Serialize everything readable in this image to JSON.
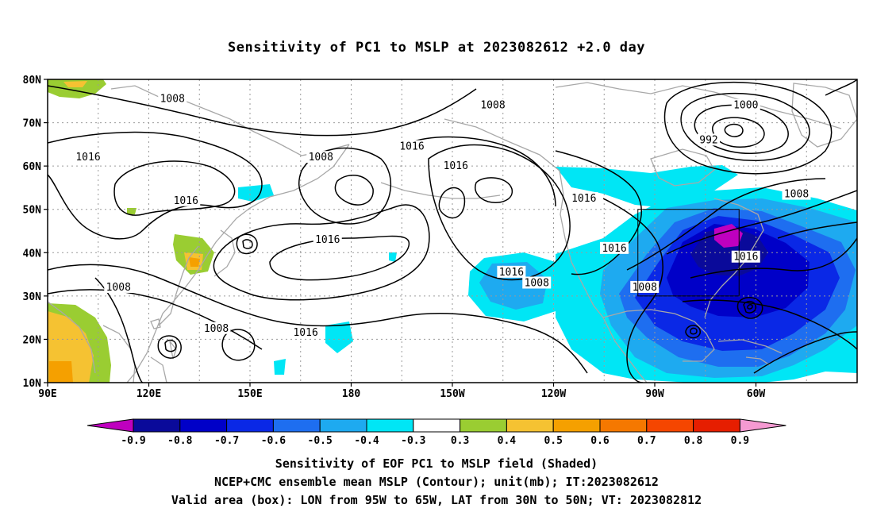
{
  "title": "Sensitivity of PC1 to MSLP at 2023082612 +2.0 day",
  "lat_labels": [
    "80N",
    "70N",
    "60N",
    "50N",
    "40N",
    "30N",
    "20N",
    "10N"
  ],
  "lon_labels": [
    "90E",
    "120E",
    "150E",
    "180",
    "150W",
    "120W",
    "90W",
    "60W"
  ],
  "contour_labels": [
    {
      "text": "1008",
      "lon": 127,
      "lat": 75.5
    },
    {
      "text": "1016",
      "lon": 102,
      "lat": 62
    },
    {
      "text": "1016",
      "lon": 131,
      "lat": 52
    },
    {
      "text": "1008",
      "lon": 171,
      "lat": 62
    },
    {
      "text": "1016",
      "lon": 173,
      "lat": 43
    },
    {
      "text": "1016",
      "lon": 198,
      "lat": 64.5
    },
    {
      "text": "1016",
      "lon": 211,
      "lat": 60
    },
    {
      "text": "1008",
      "lon": 222,
      "lat": 74
    },
    {
      "text": "1000",
      "lon": 297,
      "lat": 74
    },
    {
      "text": "992",
      "lon": 286,
      "lat": 66
    },
    {
      "text": "1016",
      "lon": 249,
      "lat": 52.5
    },
    {
      "text": "1008",
      "lon": 312,
      "lat": 53.5
    },
    {
      "text": "1016",
      "lon": 227.5,
      "lat": 35.5
    },
    {
      "text": "1008",
      "lon": 235,
      "lat": 33
    },
    {
      "text": "1016",
      "lon": 258,
      "lat": 41
    },
    {
      "text": "1016",
      "lon": 297,
      "lat": 39
    },
    {
      "text": "1008",
      "lon": 267,
      "lat": 32
    },
    {
      "text": "1008",
      "lon": 111,
      "lat": 32
    },
    {
      "text": "1008",
      "lon": 140,
      "lat": 22.5
    },
    {
      "text": "1016",
      "lon": 166.5,
      "lat": 21.5
    }
  ],
  "colorbar": {
    "colors": [
      "#bf00bf",
      "#0a0a9a",
      "#0000c8",
      "#0a28e6",
      "#1e6ef0",
      "#1eaaf0",
      "#00e6f5",
      "#ffffff",
      "#9acd32",
      "#f5c232",
      "#f5a000",
      "#f57800",
      "#f54600",
      "#e61e00",
      "#f59ad2"
    ],
    "tick_labels": [
      "-0.9",
      "-0.8",
      "-0.7",
      "-0.6",
      "-0.5",
      "-0.4",
      "-0.3",
      "0.3",
      "0.4",
      "0.5",
      "0.6",
      "0.7",
      "0.8",
      "0.9"
    ]
  },
  "valid_box": {
    "lon_min": 265,
    "lon_max": 295,
    "lat_min": 30,
    "lat_max": 50
  },
  "captions": [
    "Sensitivity of EOF PC1 to MSLP field (Shaded)",
    "NCEP+CMC ensemble mean MSLP (Contour); unit(mb); IT:2023082612",
    "Valid area (box): LON from 95W to 65W, LAT from 30N to 50N; VT: 2023082812"
  ]
}
